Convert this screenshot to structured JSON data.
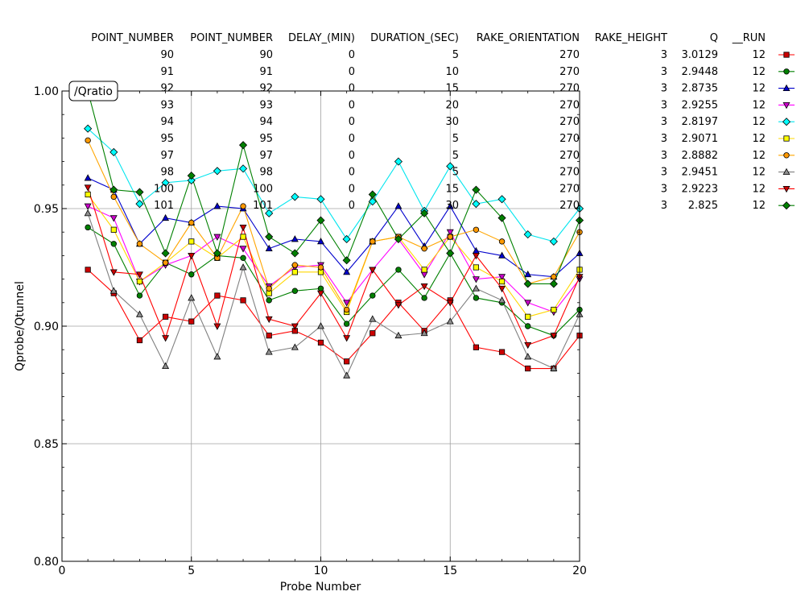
{
  "chart_data": {
    "type": "line",
    "title": "",
    "badge": "/Qratio",
    "xlabel": "Probe Number",
    "ylabel": "Qprobe/Qtunnel",
    "xlim": [
      0,
      20
    ],
    "ylim": [
      0.8,
      1.0
    ],
    "xticks": [
      0,
      5,
      10,
      15,
      20
    ],
    "yticks": [
      0.8,
      0.85,
      0.9,
      0.95,
      1.0
    ],
    "ytick_labels": [
      "0.80",
      "0.85",
      "0.90",
      "0.95",
      "1.00"
    ],
    "grid": true,
    "x": [
      1,
      2,
      3,
      4,
      5,
      6,
      7,
      8,
      9,
      10,
      11,
      12,
      13,
      14,
      15,
      16,
      17,
      18,
      19,
      20
    ],
    "legend_columns": [
      "POINT_NUMBER",
      "POINT_NUMBER",
      "DELAY_(MIN)",
      "DURATION_(SEC)",
      "RAKE_ORIENTATION",
      "RAKE_HEIGHT",
      "Q",
      "__RUN"
    ],
    "series": [
      {
        "color": "#ff0000",
        "fill": "#cc0000",
        "marker": "square",
        "row": [
          "90",
          "90",
          "0",
          "5",
          "270",
          "3",
          "3.0129",
          "12"
        ],
        "values": [
          0.924,
          0.914,
          0.894,
          0.904,
          0.902,
          0.913,
          0.911,
          0.896,
          0.898,
          0.893,
          0.885,
          0.897,
          0.91,
          0.898,
          0.911,
          0.891,
          0.889,
          0.882,
          0.882,
          0.896
        ]
      },
      {
        "color": "#008000",
        "fill": "#008000",
        "marker": "circle",
        "row": [
          "91",
          "91",
          "0",
          "10",
          "270",
          "3",
          "2.9448",
          "12"
        ],
        "values": [
          0.942,
          0.935,
          0.913,
          0.927,
          0.922,
          0.93,
          0.929,
          0.911,
          0.915,
          0.916,
          0.901,
          0.913,
          0.924,
          0.912,
          0.931,
          0.912,
          0.91,
          0.9,
          0.896,
          0.907
        ]
      },
      {
        "color": "#0000cc",
        "fill": "#0000cc",
        "marker": "triangle-up",
        "row": [
          "92",
          "92",
          "0",
          "15",
          "270",
          "3",
          "2.8735",
          "12"
        ],
        "values": [
          0.963,
          0.958,
          0.935,
          0.946,
          0.944,
          0.951,
          0.95,
          0.933,
          0.937,
          0.936,
          0.923,
          0.936,
          0.951,
          0.934,
          0.951,
          0.932,
          0.93,
          0.922,
          0.921,
          0.931
        ]
      },
      {
        "color": "#ff00ff",
        "fill": "#cc00cc",
        "marker": "triangle-down",
        "row": [
          "93",
          "93",
          "0",
          "20",
          "270",
          "3",
          "2.9255",
          "12"
        ],
        "values": [
          0.951,
          0.946,
          0.919,
          0.926,
          0.93,
          0.938,
          0.933,
          0.917,
          0.925,
          0.926,
          0.91,
          0.924,
          0.937,
          0.922,
          0.94,
          0.92,
          0.921,
          0.91,
          0.906,
          0.92
        ]
      },
      {
        "color": "#00e5ee",
        "fill": "#00ffff",
        "marker": "diamond",
        "row": [
          "94",
          "94",
          "0",
          "30",
          "270",
          "3",
          "2.8197",
          "12"
        ],
        "values": [
          0.984,
          0.974,
          0.952,
          0.961,
          0.962,
          0.966,
          0.967,
          0.948,
          0.955,
          0.954,
          0.937,
          0.953,
          0.97,
          0.949,
          0.968,
          0.952,
          0.954,
          0.939,
          0.936,
          0.95
        ]
      },
      {
        "color": "#ffd700",
        "fill": "#ffff00",
        "marker": "square",
        "row": [
          "95",
          "95",
          "0",
          "5",
          "270",
          "3",
          "2.9071",
          "12"
        ],
        "values": [
          0.956,
          0.941,
          0.919,
          0.927,
          0.936,
          0.929,
          0.938,
          0.914,
          0.923,
          0.923,
          0.906,
          0.936,
          0.938,
          0.924,
          0.938,
          0.925,
          0.919,
          0.904,
          0.907,
          0.924
        ]
      },
      {
        "color": "#ffa500",
        "fill": "#ff9900",
        "marker": "circle",
        "row": [
          "97",
          "97",
          "0",
          "5",
          "270",
          "3",
          "2.8882",
          "12"
        ],
        "values": [
          0.979,
          0.955,
          0.935,
          0.927,
          0.944,
          0.929,
          0.951,
          0.916,
          0.926,
          0.925,
          0.907,
          0.936,
          0.938,
          0.933,
          0.938,
          0.941,
          0.936,
          0.918,
          0.921,
          0.94
        ]
      },
      {
        "color": "#808080",
        "fill": "#909090",
        "marker": "triangle-up",
        "row": [
          "98",
          "98",
          "0",
          "5",
          "270",
          "3",
          "2.9451",
          "12"
        ],
        "values": [
          0.948,
          0.915,
          0.905,
          0.883,
          0.912,
          0.887,
          0.925,
          0.889,
          0.891,
          0.9,
          0.879,
          0.903,
          0.896,
          0.897,
          0.902,
          0.916,
          0.911,
          0.887,
          0.882,
          0.905
        ]
      },
      {
        "color": "#ff0000",
        "fill": "#cc0000",
        "marker": "triangle-down",
        "row": [
          "100",
          "100",
          "0",
          "15",
          "270",
          "3",
          "2.9223",
          "12"
        ],
        "values": [
          0.959,
          0.923,
          0.922,
          0.895,
          0.93,
          0.9,
          0.942,
          0.903,
          0.9,
          0.914,
          0.895,
          0.924,
          0.909,
          0.917,
          0.91,
          0.93,
          0.916,
          0.892,
          0.896,
          0.921
        ]
      },
      {
        "color": "#008000",
        "fill": "#008000",
        "marker": "diamond",
        "row": [
          "101",
          "101",
          "0",
          "30",
          "270",
          "3",
          "2.825",
          "12"
        ],
        "values": [
          1.0,
          0.958,
          0.957,
          0.931,
          0.964,
          0.931,
          0.977,
          0.938,
          0.931,
          0.945,
          0.928,
          0.956,
          0.937,
          0.948,
          0.931,
          0.958,
          0.946,
          0.918,
          0.918,
          0.945
        ]
      }
    ]
  }
}
